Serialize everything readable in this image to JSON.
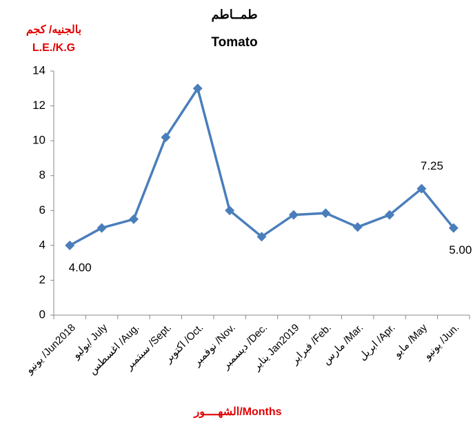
{
  "chart_data": {
    "type": "line",
    "title": "طمــاطم",
    "subtitle": "Tomato",
    "y_label": "بالجنيه/ كجم",
    "y_unit_label": "L.E./K.G",
    "x_label": "الشهــــور/Months",
    "categories": [
      "يونيو /Jun2018",
      "يوليو/ July",
      "اغسطس /Aug.",
      "سبتمبر /Sept.",
      "اكتوبر /Oct.",
      "نوفمبر /Nov.",
      "ديسمبر /Dec.",
      "يناير Jan2019",
      "فبراير /Feb.",
      "مارس /Mar.",
      "ابريل /Apr.",
      "مايو /May",
      "يونيو /Jun."
    ],
    "series": [
      {
        "name": "Tomato",
        "color": "#4a7ebb",
        "values": [
          4.0,
          5.0,
          5.5,
          10.2,
          13.0,
          6.0,
          4.5,
          5.75,
          5.85,
          5.05,
          5.75,
          7.25,
          5.0
        ],
        "value_labels": [
          "4.00",
          null,
          null,
          null,
          null,
          null,
          null,
          null,
          null,
          null,
          null,
          "7.25",
          "5.00"
        ]
      }
    ],
    "ylim": [
      0,
      14
    ],
    "yticks": [
      0,
      2,
      4,
      6,
      8,
      10,
      12,
      14
    ],
    "grid": false
  }
}
